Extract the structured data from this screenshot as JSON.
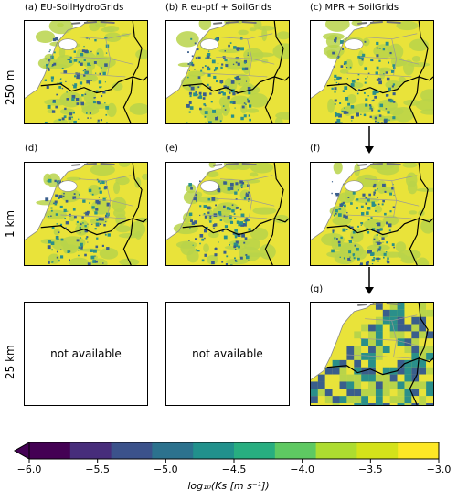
{
  "panels": {
    "a": "(a) EU-SoilHydroGrids",
    "b": "(b) R eu-ptf + SoilGrids",
    "c": "(c) MPR + SoilGrids",
    "d": "(d)",
    "e": "(e)",
    "f": "(f)",
    "g": "(g)"
  },
  "rows": {
    "r1": "250 m",
    "r2": "1 km",
    "r3": "25 km"
  },
  "not_available": "not available",
  "colorbar": {
    "ticks": [
      "−6.0",
      "−5.5",
      "−5.0",
      "−4.5",
      "−4.0",
      "−3.5",
      "−3.0"
    ],
    "label": "log₁₀(Ks [m s⁻¹])",
    "colors": [
      "#440154",
      "#472d7b",
      "#3b528b",
      "#2c728e",
      "#21918c",
      "#28ae80",
      "#5ec962",
      "#addc30",
      "#d4e21a",
      "#fde725"
    ]
  },
  "map_colors": {
    "yellow": "#e9e33a",
    "green": "#b8d44a",
    "teal": "#2a8f8a",
    "blue": "#3a5e8c",
    "water": "#ffffff"
  }
}
